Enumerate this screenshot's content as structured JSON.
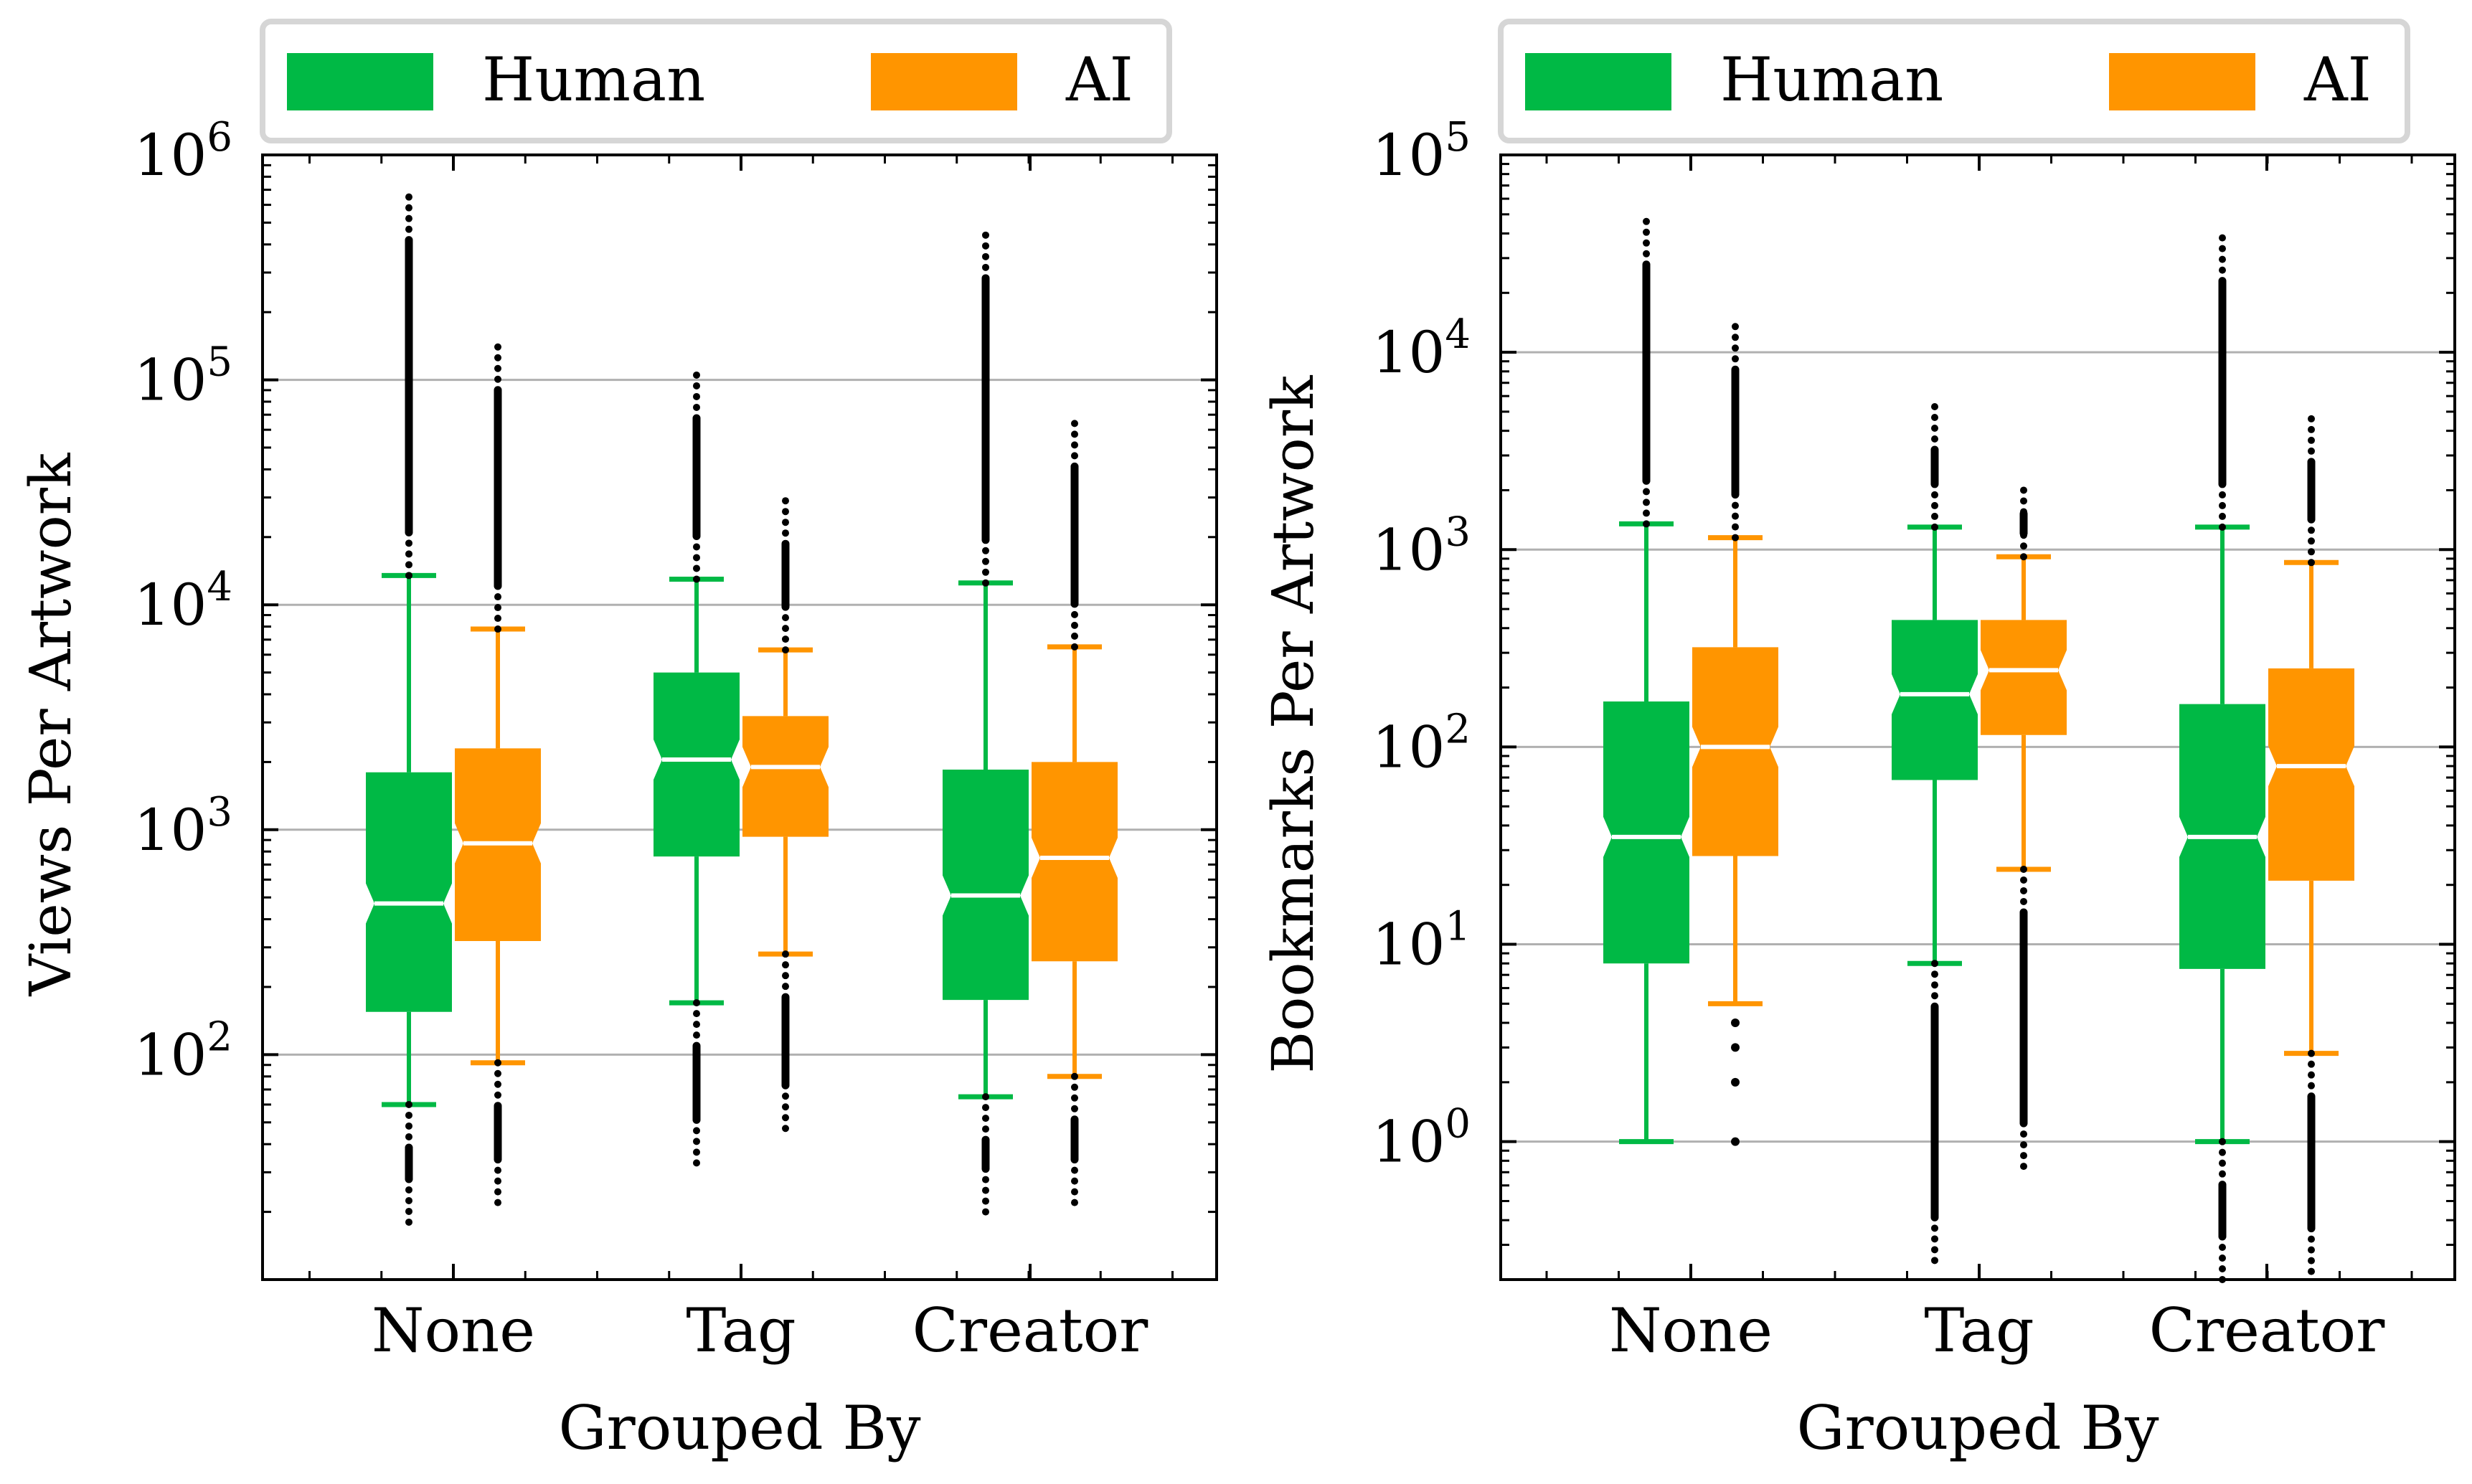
{
  "chart_data": [
    {
      "type": "box",
      "scale": "log",
      "ylabel": "Views Per Artwork",
      "xlabel": "Grouped By",
      "categories": [
        "None",
        "Tag",
        "Creator"
      ],
      "ylim": [
        10,
        1000000
      ],
      "yticks": [
        {
          "value": 100,
          "base": "10",
          "exp": "2"
        },
        {
          "value": 1000,
          "base": "10",
          "exp": "3"
        },
        {
          "value": 10000,
          "base": "10",
          "exp": "4"
        },
        {
          "value": 100000,
          "base": "10",
          "exp": "5"
        },
        {
          "value": 1000000,
          "base": "10",
          "exp": "6"
        }
      ],
      "legend": {
        "position": "top",
        "entries": [
          "Human",
          "AI"
        ]
      },
      "series": [
        {
          "name": "Human",
          "color": "#00b945",
          "boxes": [
            {
              "category": "None",
              "whisker_low": 60,
              "q1": 155,
              "median": 470,
              "q3": 1800,
              "whisker_high": 13500,
              "outliers_low": [
                18,
                60
              ],
              "outliers_high": [
                13500,
                650000
              ]
            },
            {
              "category": "Tag",
              "whisker_low": 170,
              "q1": 760,
              "median": 2050,
              "q3": 5000,
              "whisker_high": 13000,
              "outliers_low": [
                33,
                170
              ],
              "outliers_high": [
                13000,
                105000
              ]
            },
            {
              "category": "Creator",
              "whisker_low": 65,
              "q1": 175,
              "median": 510,
              "q3": 1850,
              "whisker_high": 12500,
              "outliers_low": [
                20,
                65
              ],
              "outliers_high": [
                12500,
                440000
              ]
            }
          ]
        },
        {
          "name": "AI",
          "color": "#ff9500",
          "boxes": [
            {
              "category": "None",
              "whisker_low": 92,
              "q1": 320,
              "median": 870,
              "q3": 2300,
              "whisker_high": 7800,
              "outliers_low": [
                22,
                92
              ],
              "outliers_high": [
                7800,
                140000
              ]
            },
            {
              "category": "Tag",
              "whisker_low": 280,
              "q1": 930,
              "median": 1900,
              "q3": 3200,
              "whisker_high": 6300,
              "outliers_low": [
                47,
                280
              ],
              "outliers_high": [
                6300,
                29000
              ]
            },
            {
              "category": "Creator",
              "whisker_low": 80,
              "q1": 260,
              "median": 750,
              "q3": 2000,
              "whisker_high": 6500,
              "outliers_low": [
                22,
                80
              ],
              "outliers_high": [
                6500,
                64000
              ]
            }
          ]
        }
      ]
    },
    {
      "type": "box",
      "scale": "log",
      "ylabel": "Bookmarks Per Artwork",
      "xlabel": "Grouped By",
      "categories": [
        "None",
        "Tag",
        "Creator"
      ],
      "ylim": [
        0.2,
        100000
      ],
      "yticks": [
        {
          "value": 1,
          "base": "10",
          "exp": "0"
        },
        {
          "value": 10,
          "base": "10",
          "exp": "1"
        },
        {
          "value": 100,
          "base": "10",
          "exp": "2"
        },
        {
          "value": 1000,
          "base": "10",
          "exp": "3"
        },
        {
          "value": 10000,
          "base": "10",
          "exp": "4"
        },
        {
          "value": 100000,
          "base": "10",
          "exp": "5"
        }
      ],
      "legend": {
        "position": "top",
        "entries": [
          "Human",
          "AI"
        ]
      },
      "series": [
        {
          "name": "Human",
          "color": "#00b945",
          "boxes": [
            {
              "category": "None",
              "whisker_low": 1,
              "q1": 8,
              "median": 35,
              "q3": 170,
              "whisker_high": 1350,
              "outliers_low": [],
              "outliers_high": [
                1350,
                46000
              ]
            },
            {
              "category": "Tag",
              "whisker_low": 8,
              "q1": 68,
              "median": 185,
              "q3": 440,
              "whisker_high": 1300,
              "outliers_low": [
                0.25,
                8
              ],
              "outliers_high": [
                1300,
                5300
              ]
            },
            {
              "category": "Creator",
              "whisker_low": 1,
              "q1": 7.5,
              "median": 35,
              "q3": 165,
              "whisker_high": 1300,
              "outliers_low": [
                0.2,
                1
              ],
              "outliers_high": [
                1300,
                38000
              ]
            }
          ]
        },
        {
          "name": "AI",
          "color": "#ff9500",
          "boxes": [
            {
              "category": "None",
              "whisker_low": 5,
              "q1": 28,
              "median": 100,
              "q3": 320,
              "whisker_high": 1150,
              "outliers_low": [
                1,
                2,
                3,
                4
              ],
              "outliers_high": [
                1150,
                13500
              ]
            },
            {
              "category": "Tag",
              "whisker_low": 24,
              "q1": 115,
              "median": 245,
              "q3": 440,
              "whisker_high": 920,
              "outliers_low": [
                0.75,
                24
              ],
              "outliers_high": [
                920,
                2000
              ]
            },
            {
              "category": "Creator",
              "whisker_low": 2.8,
              "q1": 21,
              "median": 80,
              "q3": 250,
              "whisker_high": 860,
              "outliers_low": [
                0.22,
                2.8
              ],
              "outliers_high": [
                860,
                4600
              ]
            }
          ]
        }
      ]
    }
  ]
}
